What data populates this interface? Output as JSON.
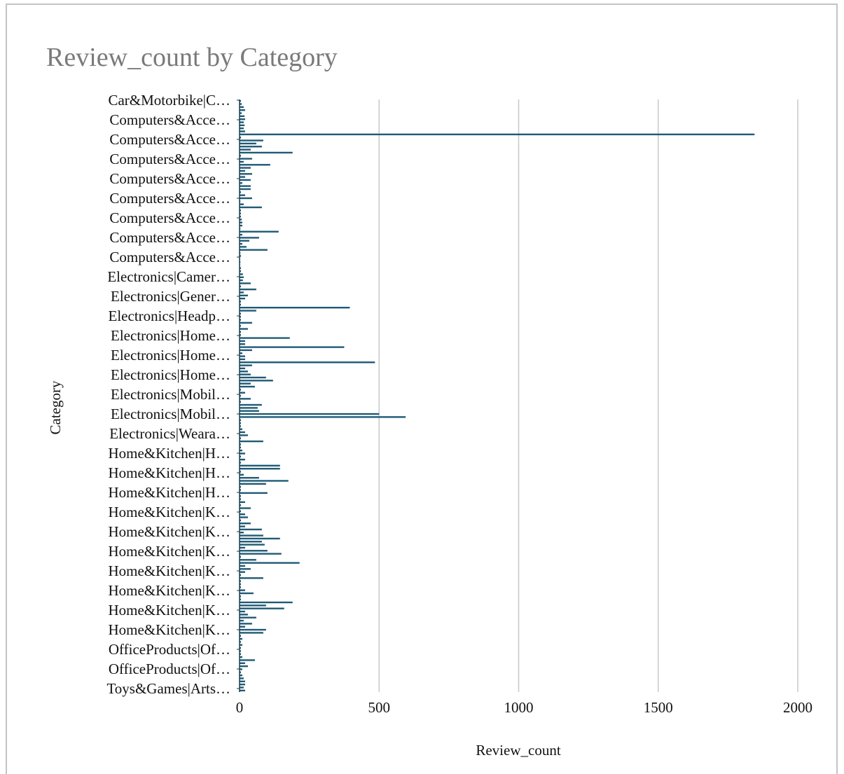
{
  "chart_data": {
    "type": "bar",
    "orientation": "horizontal",
    "title": "Review_count by Category",
    "xlabel": "Review_count",
    "ylabel": "Category",
    "xlim": [
      0,
      2000
    ],
    "xticks": [
      0,
      500,
      1000,
      1500,
      2000
    ],
    "grid": "vertical",
    "bar_color": "#1f5a75",
    "category_labels": [
      "Car&Motorbike|C…",
      "Computers&Acce…",
      "Computers&Acce…",
      "Computers&Acce…",
      "Computers&Acce…",
      "Computers&Acce…",
      "Computers&Acce…",
      "Computers&Acce…",
      "Computers&Acce…",
      "Electronics|Camer…",
      "Electronics|Gener…",
      "Electronics|Headp…",
      "Electronics|Home…",
      "Electronics|Home…",
      "Electronics|Home…",
      "Electronics|Mobil…",
      "Electronics|Mobil…",
      "Electronics|Weara…",
      "Home&Kitchen|H…",
      "Home&Kitchen|H…",
      "Home&Kitchen|H…",
      "Home&Kitchen|K…",
      "Home&Kitchen|K…",
      "Home&Kitchen|K…",
      "Home&Kitchen|K…",
      "Home&Kitchen|K…",
      "Home&Kitchen|K…",
      "Home&Kitchen|K…",
      "OfficeProducts|Of…",
      "OfficeProducts|Of…",
      "Toys&Games|Arts…"
    ],
    "values": [
      5,
      8,
      15,
      20,
      8,
      18,
      20,
      15,
      18,
      15,
      20,
      1845,
      5,
      85,
      60,
      80,
      40,
      190,
      5,
      45,
      15,
      110,
      40,
      20,
      45,
      20,
      40,
      10,
      40,
      40,
      5,
      20,
      45,
      3,
      15,
      80,
      5,
      5,
      5,
      8,
      10,
      10,
      3,
      140,
      10,
      70,
      35,
      10,
      25,
      100,
      3,
      5,
      2,
      3,
      2,
      5,
      5,
      12,
      15,
      12,
      40,
      5,
      60,
      15,
      30,
      20,
      5,
      5,
      395,
      60,
      5,
      5,
      5,
      45,
      5,
      30,
      5,
      5,
      180,
      20,
      20,
      375,
      45,
      10,
      20,
      20,
      485,
      45,
      20,
      30,
      40,
      95,
      120,
      40,
      55,
      5,
      20,
      5,
      40,
      5,
      80,
      65,
      70,
      500,
      595,
      5,
      5,
      5,
      10,
      20,
      30,
      5,
      85,
      5,
      5,
      10,
      20,
      5,
      20,
      5,
      145,
      145,
      5,
      15,
      70,
      175,
      95,
      5,
      5,
      100,
      5,
      5,
      20,
      5,
      40,
      5,
      20,
      30,
      5,
      40,
      20,
      80,
      15,
      85,
      145,
      80,
      90,
      20,
      100,
      150,
      5,
      60,
      215,
      20,
      40,
      20,
      5,
      85,
      5,
      5,
      5,
      20,
      50,
      5,
      5,
      190,
      95,
      160,
      20,
      30,
      60,
      15,
      45,
      20,
      95,
      85,
      5,
      10,
      5,
      10,
      5,
      5,
      5,
      10,
      55,
      20,
      30,
      10,
      5,
      10,
      15,
      20,
      20,
      15,
      20
    ]
  }
}
